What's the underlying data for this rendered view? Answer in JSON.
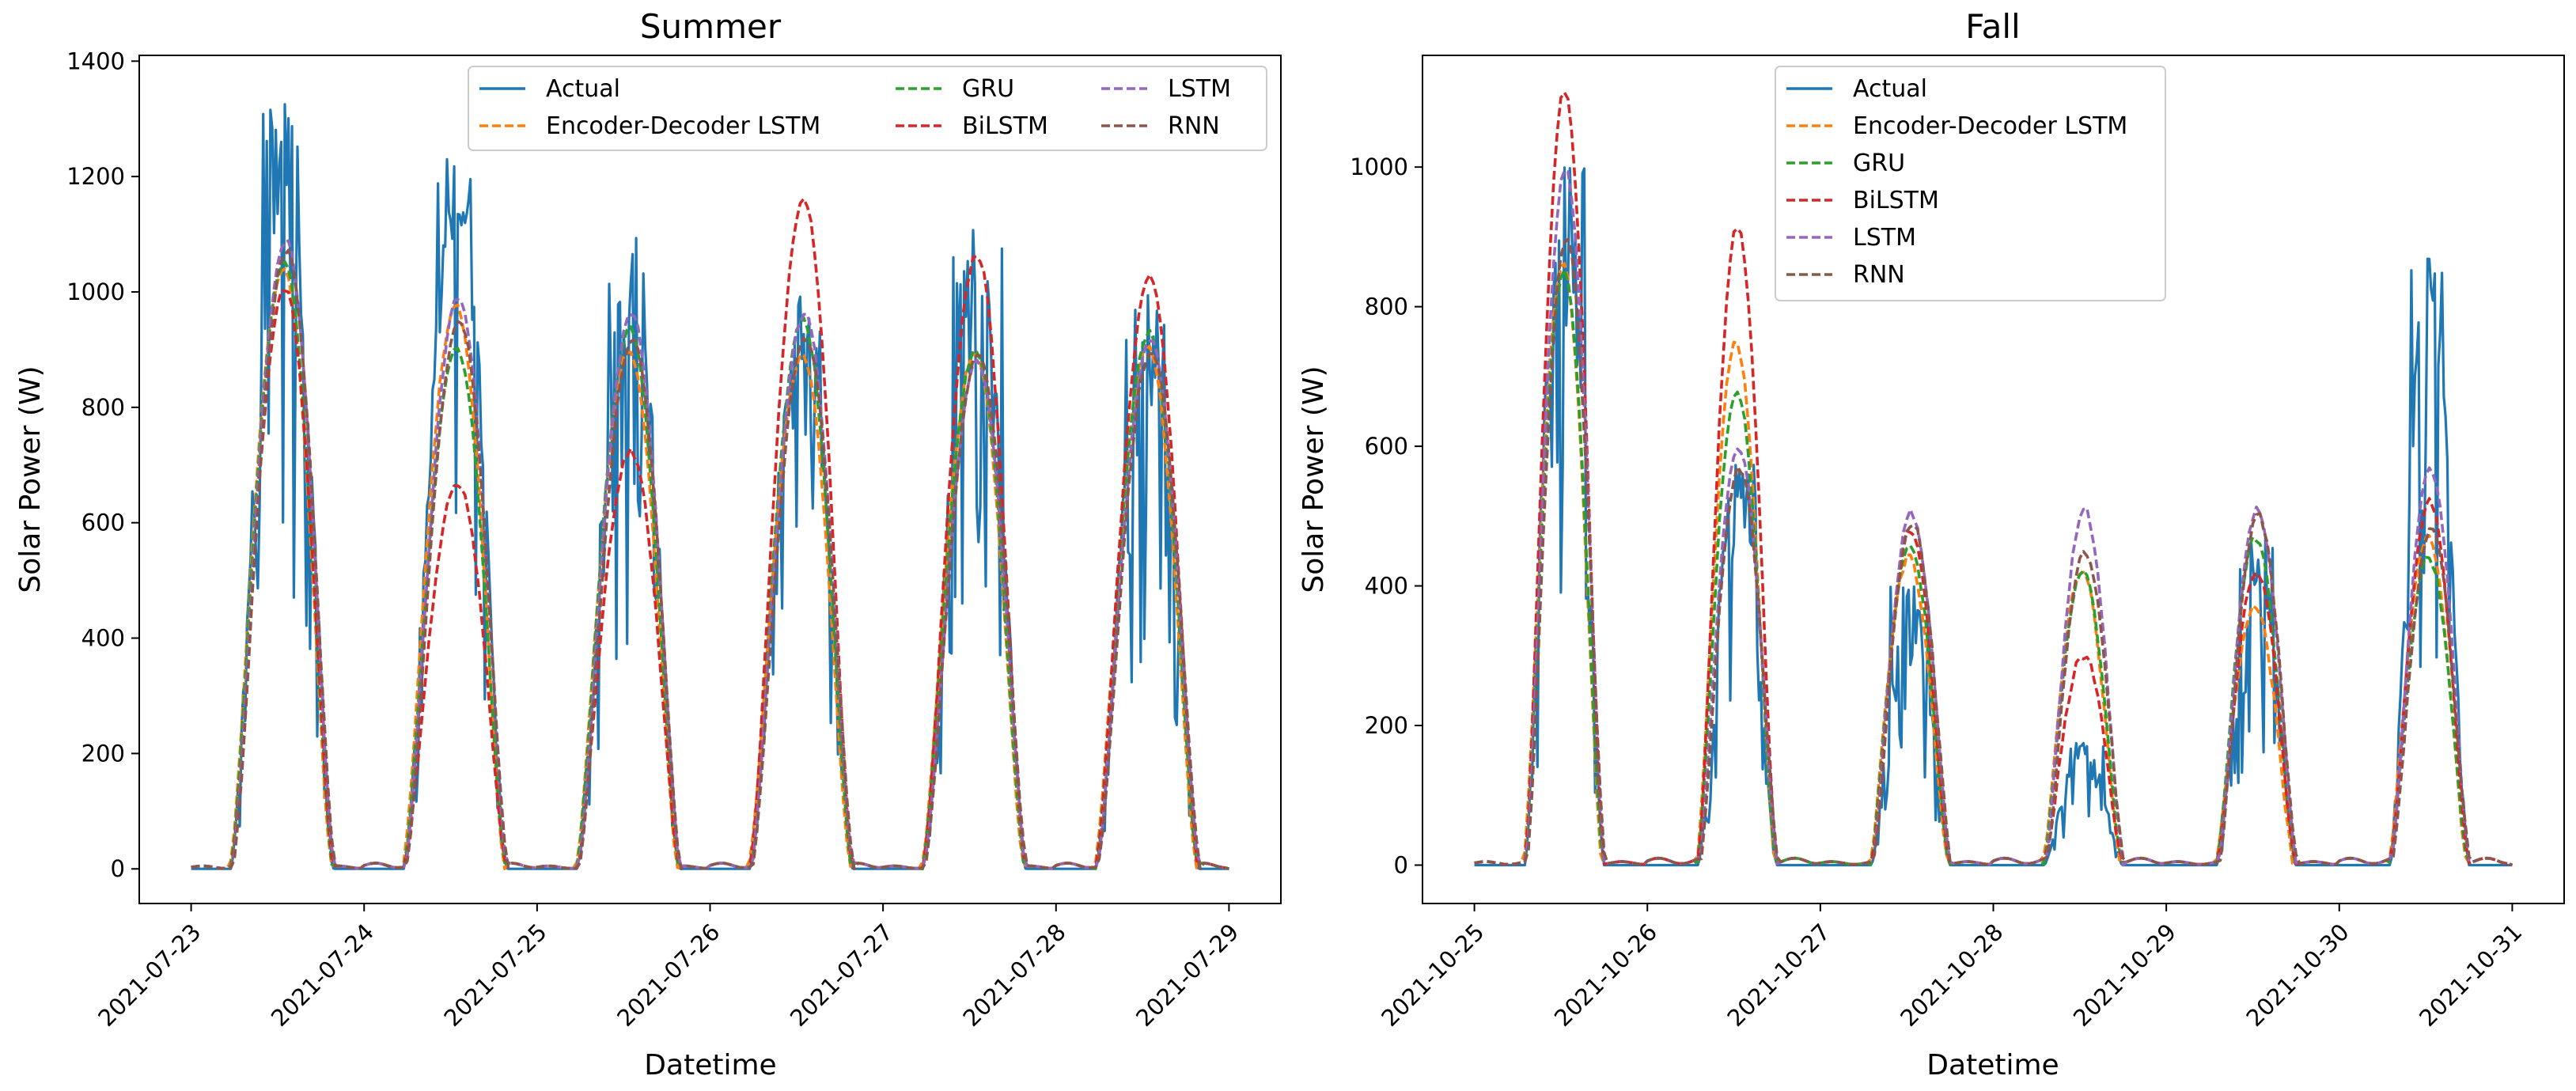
{
  "colors": {
    "Actual": "#1f77b4",
    "Encoder-Decoder LSTM": "#ff7f0e",
    "GRU": "#2ca02c",
    "BiLSTM": "#d62728",
    "LSTM": "#9467bd",
    "RNN": "#8c564b"
  },
  "chart_data": [
    {
      "type": "line",
      "title": "Summer",
      "xlabel": "Datetime",
      "ylabel": "Solar Power (W)",
      "x_ticks": [
        "2021-07-23",
        "2021-07-24",
        "2021-07-25",
        "2021-07-26",
        "2021-07-27",
        "2021-07-28",
        "2021-07-29"
      ],
      "y_ticks": [
        0,
        200,
        400,
        600,
        800,
        1000,
        1200,
        1400
      ],
      "ylim": [
        -60,
        1410
      ],
      "xlim_days": [
        -0.3,
        6.3
      ],
      "legend_position": "upper-right",
      "legend_columns": 3,
      "legend_order": [
        "Actual",
        "Encoder-Decoder LSTM",
        "GRU",
        "BiLSTM",
        "LSTM",
        "RNN"
      ],
      "daylight_hours": {
        "sunrise": 5.5,
        "sunset": 19.8,
        "peak": 13.0
      },
      "series": [
        {
          "name": "Actual",
          "style": "solid",
          "daily_peaks": [
            1345,
            1260,
            1115,
            1020,
            1125,
            1010
          ]
        },
        {
          "name": "Encoder-Decoder LSTM",
          "style": "dashed",
          "daily_peaks": [
            1040,
            975,
            900,
            890,
            895,
            905
          ]
        },
        {
          "name": "GRU",
          "style": "dashed",
          "daily_peaks": [
            1050,
            900,
            935,
            950,
            900,
            930
          ]
        },
        {
          "name": "BiLSTM",
          "style": "dashed",
          "daily_peaks": [
            1005,
            670,
            725,
            1160,
            1065,
            1025
          ]
        },
        {
          "name": "LSTM",
          "style": "dashed",
          "daily_peaks": [
            1090,
            990,
            960,
            960,
            880,
            915
          ]
        },
        {
          "name": "RNN",
          "style": "dashed",
          "daily_peaks": [
            1070,
            950,
            915,
            920,
            895,
            900
          ]
        }
      ]
    },
    {
      "type": "line",
      "title": "Fall",
      "xlabel": "Datetime",
      "ylabel": "Solar Power (W)",
      "x_ticks": [
        "2021-10-25",
        "2021-10-26",
        "2021-10-27",
        "2021-10-28",
        "2021-10-29",
        "2021-10-30",
        "2021-10-31"
      ],
      "y_ticks": [
        0,
        200,
        400,
        600,
        800,
        1000
      ],
      "ylim": [
        -55,
        1160
      ],
      "xlim_days": [
        -0.3,
        6.3
      ],
      "legend_position": "upper-center",
      "legend_columns": 1,
      "legend_order": [
        "Actual",
        "Encoder-Decoder LSTM",
        "GRU",
        "BiLSTM",
        "LSTM",
        "RNN"
      ],
      "daylight_hours": {
        "sunrise": 7.0,
        "sunset": 18.0,
        "peak": 12.5
      },
      "series": [
        {
          "name": "Actual",
          "style": "solid",
          "daily_peaks": [
            1050,
            580,
            400,
            175,
            470,
            880
          ]
        },
        {
          "name": "Encoder-Decoder LSTM",
          "style": "dashed",
          "daily_peaks": [
            860,
            750,
            440,
            420,
            370,
            470
          ]
        },
        {
          "name": "GRU",
          "style": "dashed",
          "daily_peaks": [
            850,
            680,
            460,
            420,
            470,
            440
          ]
        },
        {
          "name": "BiLSTM",
          "style": "dashed",
          "daily_peaks": [
            1110,
            915,
            480,
            300,
            420,
            520
          ]
        },
        {
          "name": "LSTM",
          "style": "dashed",
          "daily_peaks": [
            1000,
            600,
            505,
            510,
            510,
            570
          ]
        },
        {
          "name": "RNN",
          "style": "dashed",
          "daily_peaks": [
            900,
            570,
            490,
            450,
            500,
            480
          ]
        }
      ]
    }
  ]
}
